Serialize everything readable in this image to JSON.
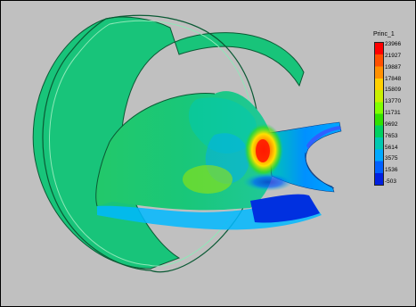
{
  "viewport": {
    "background_color": "#c0c0c0",
    "border_color": "#000000"
  },
  "legend": {
    "title": "Princ_1",
    "values": [
      "23966",
      "21927",
      "19887",
      "17848",
      "15809",
      "13770",
      "11731",
      "9692",
      "7653",
      "5614",
      "3575",
      "1536",
      "-503"
    ],
    "colors": [
      "#ff0000",
      "#ff5000",
      "#ff9000",
      "#ffd000",
      "#c8f000",
      "#80ff00",
      "#30e000",
      "#00d060",
      "#00c8b0",
      "#00a8ff",
      "#0060ff",
      "#0020e0"
    ]
  },
  "model": {
    "description_icon": "stress-contour-cylinder-icon",
    "shell_color": "#19c779",
    "shell_edge_color": "#0a5a34",
    "hotspot_color": "#ff1a00"
  }
}
